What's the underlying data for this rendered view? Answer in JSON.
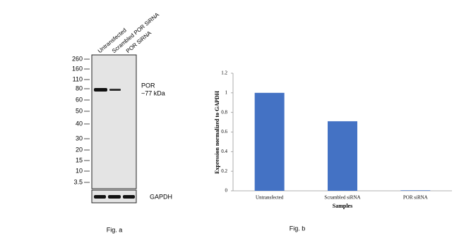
{
  "blot": {
    "lanes": [
      "Untransfected",
      "Scrambled POR SiRNA",
      "POR SiRNA"
    ],
    "markers": [
      "260",
      "160",
      "110",
      "80",
      "60",
      "50",
      "40",
      "30",
      "20",
      "15",
      "10",
      "3.5"
    ],
    "target": "POR",
    "target_size": "~77 kDa",
    "loading_control": "GAPDH",
    "caption": "Fig. a"
  },
  "chart_data": {
    "type": "bar",
    "caption": "Fig. b",
    "x_label": "Samples",
    "y_label": "Expression normalized to GAPDH",
    "categories": [
      "Untransfected",
      "Scrambled siRNA",
      "POR siRNA"
    ],
    "values": [
      1,
      0.71,
      0.005
    ],
    "color": "#4472c4",
    "ylim": [
      0,
      1.2
    ],
    "yticks": [
      0,
      0.2,
      0.4,
      0.6,
      0.8,
      1,
      1.2
    ]
  }
}
